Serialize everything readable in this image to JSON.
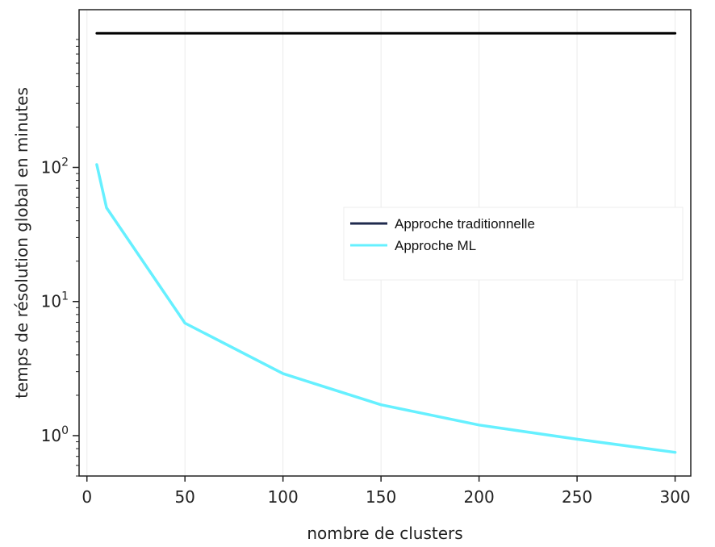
{
  "chart_data": {
    "type": "line",
    "title": "",
    "xlabel": "nombre de clusters",
    "ylabel": "temps de résolution global en minutes",
    "y_scale": "log",
    "xlim": [
      -4,
      308
    ],
    "ylim": [
      0.5,
      1500
    ],
    "x_ticks": [
      0,
      50,
      100,
      150,
      200,
      250,
      300
    ],
    "y_ticks": [
      {
        "value": 1,
        "base": "10",
        "exp": "0"
      },
      {
        "value": 10,
        "base": "10",
        "exp": "1"
      },
      {
        "value": 100,
        "base": "10",
        "exp": "2"
      }
    ],
    "grid": "vertical",
    "legend_position": "right",
    "series": [
      {
        "name": "Approche traditionnelle",
        "color": "#000000",
        "legend_color": "#1f2a4d",
        "x": [
          5,
          300
        ],
        "y": [
          1000,
          1000
        ]
      },
      {
        "name": "Approche ML",
        "color": "#66f0ff",
        "x": [
          5,
          10,
          50,
          100,
          150,
          200,
          250,
          300
        ],
        "y": [
          105,
          50,
          6.9,
          2.9,
          1.7,
          1.2,
          0.94,
          0.75
        ]
      }
    ]
  }
}
